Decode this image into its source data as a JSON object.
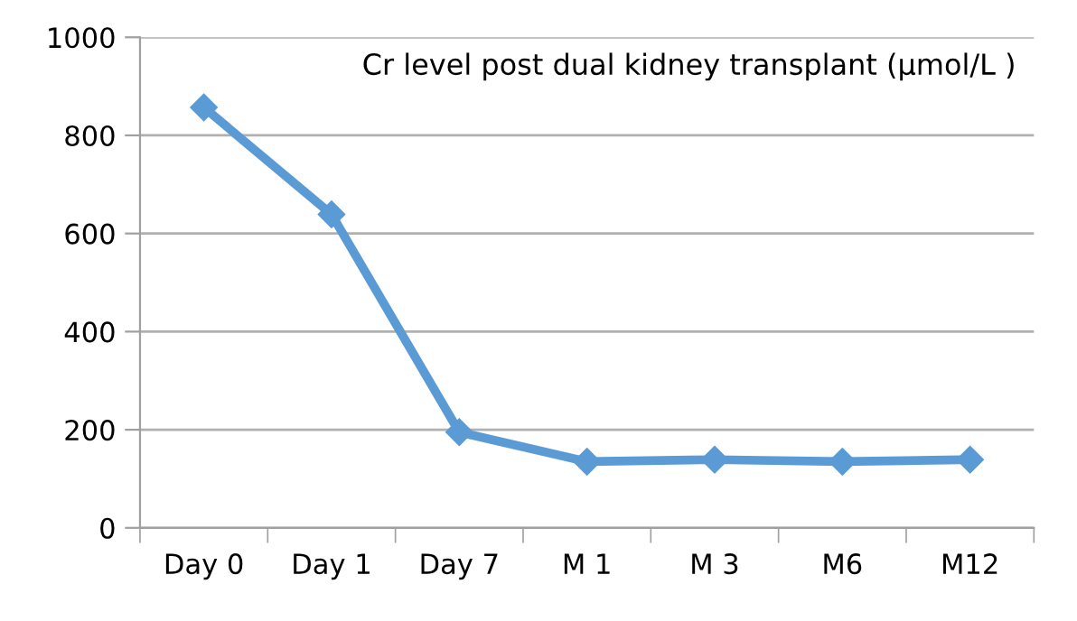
{
  "chart_data": {
    "type": "line",
    "title": "Cr level post dual kidney transplant (µmol/L )",
    "categories": [
      "Day 0",
      "Day 1",
      "Day 7",
      "M 1",
      "M 3",
      "M6",
      "M12"
    ],
    "series": [
      {
        "color": "#5b9bd5",
        "values": [
          857,
          639,
          195,
          135,
          139,
          135,
          139
        ]
      }
    ],
    "ylim": [
      0,
      1000
    ],
    "yticks": [
      0,
      200,
      400,
      600,
      800,
      1000
    ],
    "grid": "y",
    "marker": "diamond",
    "line_style": "solid",
    "legend": false
  }
}
